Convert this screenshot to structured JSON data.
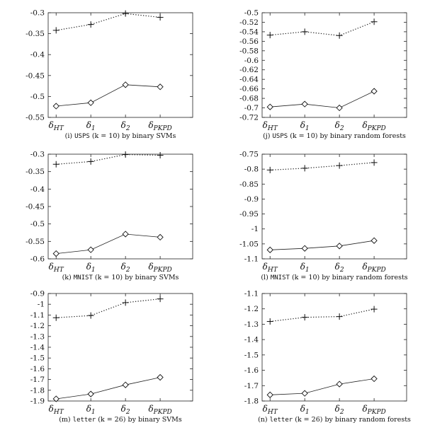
{
  "chart_data": [
    {
      "type": "line",
      "categories": [
        "δHT",
        "δ1",
        "δ2",
        "δPKPD"
      ],
      "ylim": [
        -0.55,
        -0.3
      ],
      "yticks": [
        "-0.55",
        "-0.5",
        "-0.45",
        "-0.4",
        "-0.35",
        "-0.3"
      ],
      "series": [
        {
          "style": "dotted-plus",
          "values": [
            -0.342,
            -0.328,
            -0.302,
            -0.311
          ]
        },
        {
          "style": "solid-diamond",
          "values": [
            -0.523,
            -0.515,
            -0.472,
            -0.477
          ]
        }
      ],
      "caption": {
        "prefix": "(i) ",
        "dataset": "USPS",
        "middle": " (k = 10) by binary SVMs"
      }
    },
    {
      "type": "line",
      "categories": [
        "δHT",
        "δ1",
        "δ2",
        "δPKPD"
      ],
      "ylim": [
        -0.72,
        -0.5
      ],
      "yticks": [
        "-0.72",
        "-0.7",
        "-0.68",
        "-0.66",
        "-0.64",
        "-0.62",
        "-0.6",
        "-0.58",
        "-0.56",
        "-0.54",
        "-0.52",
        "-0.5"
      ],
      "series": [
        {
          "style": "dotted-plus",
          "values": [
            -0.547,
            -0.54,
            -0.548,
            -0.519
          ]
        },
        {
          "style": "solid-diamond",
          "values": [
            -0.698,
            -0.692,
            -0.7,
            -0.665
          ]
        }
      ],
      "caption": {
        "prefix": "(j) ",
        "dataset": "USPS",
        "middle": " (k = 10) by binary random forests"
      }
    },
    {
      "type": "line",
      "categories": [
        "δHT",
        "δ1",
        "δ2",
        "δPKPD"
      ],
      "ylim": [
        -0.6,
        -0.3
      ],
      "yticks": [
        "-0.6",
        "-0.55",
        "-0.5",
        "-0.45",
        "-0.4",
        "-0.35",
        "-0.3"
      ],
      "series": [
        {
          "style": "dotted-plus",
          "values": [
            -0.329,
            -0.321,
            -0.301,
            -0.303
          ]
        },
        {
          "style": "solid-diamond",
          "values": [
            -0.585,
            -0.574,
            -0.529,
            -0.538
          ]
        }
      ],
      "caption": {
        "prefix": "(k) ",
        "dataset": "MNIST",
        "middle": " (k = 10) by binary SVMs"
      }
    },
    {
      "type": "line",
      "categories": [
        "δHT",
        "δ1",
        "δ2",
        "δPKPD"
      ],
      "ylim": [
        -1.1,
        -0.75
      ],
      "yticks": [
        "-1.1",
        "-1.05",
        "-1",
        "-0.95",
        "-0.9",
        "-0.85",
        "-0.8",
        "-0.75"
      ],
      "series": [
        {
          "style": "dotted-plus",
          "values": [
            -0.803,
            -0.797,
            -0.788,
            -0.778
          ]
        },
        {
          "style": "solid-diamond",
          "values": [
            -1.07,
            -1.065,
            -1.057,
            -1.039
          ]
        }
      ],
      "caption": {
        "prefix": "(l) ",
        "dataset": "MNIST",
        "middle": " (k = 10) by binary random forests"
      }
    },
    {
      "type": "line",
      "categories": [
        "δHT",
        "δ1",
        "δ2",
        "δPKPD"
      ],
      "ylim": [
        -1.9,
        -0.9
      ],
      "yticks": [
        "-1.9",
        "-1.8",
        "-1.7",
        "-1.6",
        "-1.5",
        "-1.4",
        "-1.3",
        "-1.2",
        "-1.1",
        "-1",
        "-0.9"
      ],
      "series": [
        {
          "style": "dotted-plus",
          "values": [
            -1.125,
            -1.105,
            -0.985,
            -0.95
          ]
        },
        {
          "style": "solid-diamond",
          "values": [
            -1.88,
            -1.835,
            -1.75,
            -1.68
          ]
        }
      ],
      "caption": {
        "prefix": "(m) ",
        "dataset": "letter",
        "middle": " (k = 26) by binary SVMs"
      }
    },
    {
      "type": "line",
      "categories": [
        "δHT",
        "δ1",
        "δ2",
        "δPKPD"
      ],
      "ylim": [
        -1.8,
        -1.1
      ],
      "yticks": [
        "-1.8",
        "-1.7",
        "-1.6",
        "-1.5",
        "-1.4",
        "-1.3",
        "-1.2",
        "-1.1"
      ],
      "series": [
        {
          "style": "dotted-plus",
          "values": [
            -1.282,
            -1.255,
            -1.25,
            -1.202
          ]
        },
        {
          "style": "solid-diamond",
          "values": [
            -1.76,
            -1.75,
            -1.69,
            -1.655
          ]
        }
      ],
      "caption": {
        "prefix": "(n) ",
        "dataset": "letter",
        "middle": " (k = 26) by binary random forests"
      }
    }
  ]
}
